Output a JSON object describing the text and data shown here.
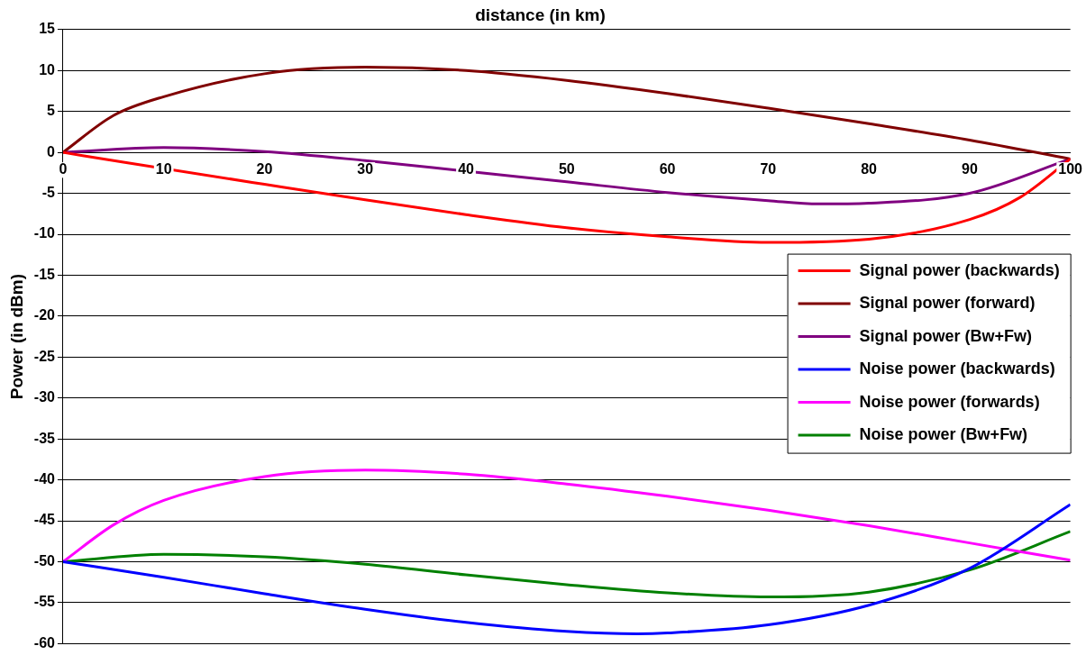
{
  "chart_data": {
    "type": "line",
    "title": "distance (in km)",
    "ylabel": "Power (in dBm)",
    "xlim": [
      0,
      100
    ],
    "xticks": [
      0,
      10,
      20,
      30,
      40,
      50,
      60,
      70,
      80,
      90,
      100
    ],
    "ylim": [
      -60,
      15
    ],
    "yticks": [
      -60,
      -55,
      -50,
      -45,
      -40,
      -35,
      -30,
      -25,
      -20,
      -15,
      -10,
      -5,
      0,
      5,
      10,
      15
    ],
    "grid": "y",
    "legend": "right",
    "marker": "none",
    "line_style": "solid",
    "series": [
      {
        "name": "Signal power (backwards)",
        "color": "#ff0000",
        "x": [
          0,
          6,
          20,
          30,
          40,
          50,
          60,
          70,
          80,
          90,
          95,
          100
        ],
        "values": [
          0,
          -1.2,
          -3.9,
          -5.8,
          -7.6,
          -9.2,
          -10.3,
          -11.0,
          -10.6,
          -8.2,
          -5.5,
          -0.8
        ]
      },
      {
        "name": "Signal power (forward)",
        "color": "#800000",
        "x": [
          0,
          5,
          10,
          20,
          30,
          40,
          50,
          60,
          70,
          80,
          90,
          100
        ],
        "values": [
          0,
          4.5,
          6.8,
          9.6,
          10.4,
          10.0,
          8.8,
          7.2,
          5.4,
          3.5,
          1.5,
          -0.8
        ]
      },
      {
        "name": "Signal power (Bw+Fw)",
        "color": "#800080",
        "x": [
          0,
          10,
          20,
          30,
          40,
          50,
          60,
          70,
          75,
          80,
          90,
          100
        ],
        "values": [
          0,
          0.6,
          0.1,
          -1.0,
          -2.3,
          -3.6,
          -4.9,
          -5.9,
          -6.3,
          -6.2,
          -5.0,
          -0.8
        ]
      },
      {
        "name": "Noise power (backwards)",
        "color": "#0000ff",
        "x": [
          0,
          10,
          20,
          30,
          40,
          50,
          57,
          60,
          70,
          80,
          90,
          100
        ],
        "values": [
          -50,
          -51.9,
          -53.9,
          -55.8,
          -57.4,
          -58.5,
          -58.8,
          -58.7,
          -57.7,
          -55.3,
          -50.8,
          -43.0
        ]
      },
      {
        "name": "Noise power (forwards)",
        "color": "#ff00ff",
        "x": [
          0,
          5,
          10,
          20,
          30,
          40,
          50,
          60,
          70,
          80,
          90,
          100
        ],
        "values": [
          -50,
          -45.5,
          -42.5,
          -39.6,
          -38.8,
          -39.3,
          -40.5,
          -42.0,
          -43.7,
          -45.6,
          -47.7,
          -49.8
        ]
      },
      {
        "name": "Noise power (Bw+Fw)",
        "color": "#008000",
        "x": [
          0,
          10,
          20,
          30,
          40,
          50,
          60,
          70,
          80,
          90,
          100
        ],
        "values": [
          -50,
          -49.1,
          -49.4,
          -50.3,
          -51.6,
          -52.8,
          -53.8,
          -54.3,
          -53.7,
          -51.0,
          -46.3
        ]
      }
    ]
  }
}
